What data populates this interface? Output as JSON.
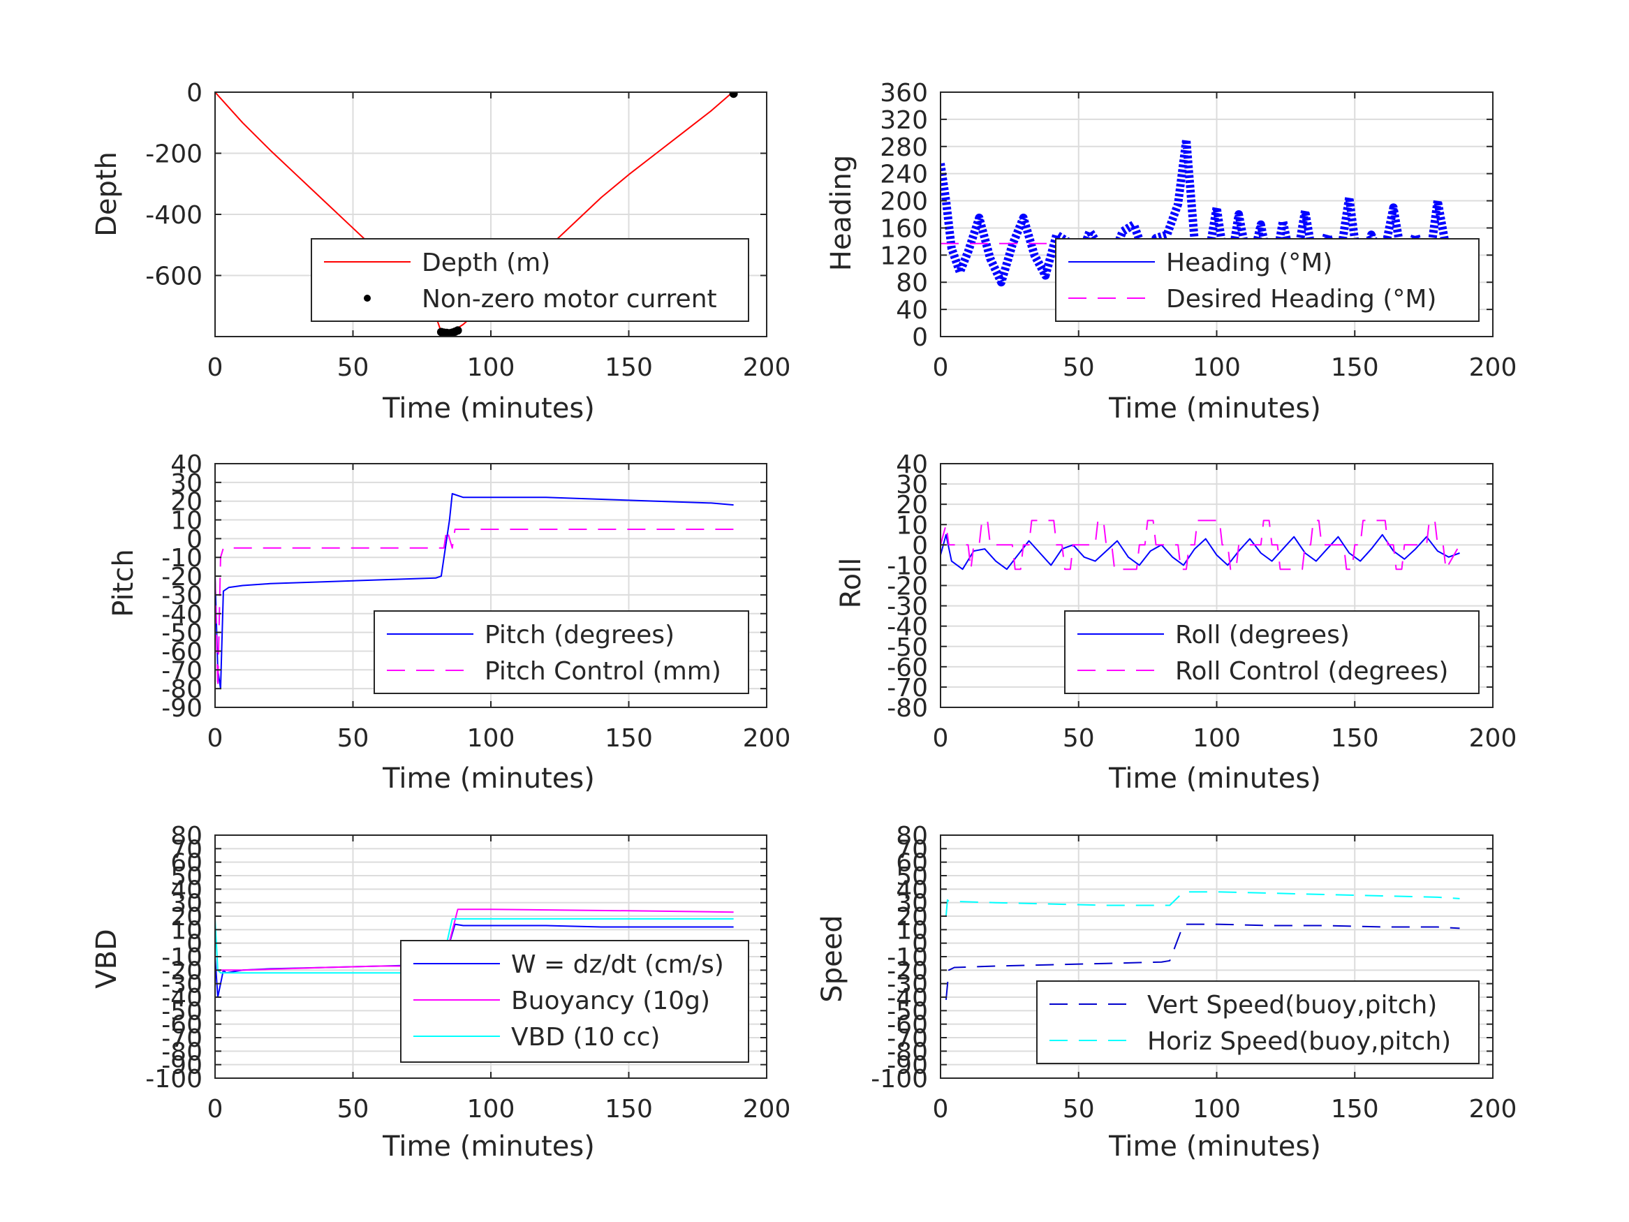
{
  "colors": {
    "axis": "#262626",
    "grid": "#dcdcdc",
    "red": "#ff0000",
    "blue": "#0000ff",
    "magenta": "#ff00ff",
    "cyan": "#00ffff",
    "black": "#000000",
    "navy": "#0000cc"
  },
  "chart_data": [
    {
      "id": "depth",
      "type": "line",
      "xlabel": "Time (minutes)",
      "ylabel": "Depth",
      "xlim": [
        0,
        200
      ],
      "ylim": [
        -800,
        0
      ],
      "xticks": [
        0,
        50,
        100,
        150,
        200
      ],
      "yticks": [
        0,
        -200,
        -400,
        -600
      ],
      "ytick_labels": [
        "0",
        "-200",
        "-400",
        "-600"
      ],
      "legend_position": "bottom-right",
      "series": [
        {
          "name": "Depth (m)",
          "color": "red",
          "style": "solid",
          "x": [
            0,
            10,
            20,
            30,
            40,
            50,
            60,
            70,
            78,
            82,
            85,
            90,
            100,
            110,
            120,
            130,
            140,
            150,
            160,
            170,
            180,
            187
          ],
          "y": [
            0,
            -100,
            -190,
            -275,
            -360,
            -445,
            -530,
            -615,
            -680,
            -785,
            -790,
            -760,
            -680,
            -600,
            -515,
            -430,
            -345,
            -270,
            -200,
            -130,
            -60,
            -5
          ]
        },
        {
          "name": "Non-zero motor current",
          "color": "black",
          "style": "dots",
          "x": [
            82,
            83,
            84,
            85,
            86,
            87,
            88,
            188
          ],
          "y": [
            -785,
            -787,
            -788,
            -789,
            -787,
            -784,
            -780,
            -5
          ]
        }
      ]
    },
    {
      "id": "heading",
      "type": "line",
      "xlabel": "Time (minutes)",
      "ylabel": "Heading",
      "xlim": [
        0,
        200
      ],
      "ylim": [
        0,
        360
      ],
      "xticks": [
        0,
        50,
        100,
        150,
        200
      ],
      "yticks": [
        0,
        40,
        80,
        120,
        160,
        200,
        240,
        280,
        320,
        360
      ],
      "legend_position": "bottom-right",
      "series": [
        {
          "name": "Heading (°M)",
          "color": "blue",
          "style": "thick",
          "x": [
            0,
            2,
            4,
            7,
            10,
            14,
            18,
            22,
            26,
            30,
            34,
            38,
            42,
            46,
            50,
            54,
            58,
            62,
            66,
            70,
            74,
            78,
            82,
            86,
            89,
            92,
            96,
            100,
            104,
            108,
            112,
            116,
            120,
            124,
            128,
            132,
            136,
            140,
            144,
            148,
            152,
            156,
            160,
            164,
            168,
            172,
            176,
            180,
            184,
            188
          ],
          "y": [
            255,
            200,
            130,
            95,
            125,
            175,
            115,
            80,
            135,
            175,
            120,
            90,
            150,
            140,
            110,
            155,
            130,
            115,
            155,
            165,
            120,
            145,
            150,
            195,
            290,
            140,
            95,
            190,
            80,
            180,
            95,
            165,
            80,
            170,
            90,
            185,
            90,
            150,
            100,
            205,
            80,
            150,
            110,
            190,
            95,
            150,
            80,
            200,
            110,
            130
          ]
        },
        {
          "name": "Desired Heading (°M)",
          "color": "magenta",
          "style": "dashed",
          "x": [
            0,
            188
          ],
          "y": [
            137,
            137
          ]
        }
      ]
    },
    {
      "id": "pitch",
      "type": "line",
      "xlabel": "Time (minutes)",
      "ylabel": "Pitch",
      "xlim": [
        0,
        200
      ],
      "ylim": [
        -90,
        40
      ],
      "xticks": [
        0,
        50,
        100,
        150,
        200
      ],
      "yticks": [
        40,
        30,
        20,
        10,
        0,
        -10,
        -20,
        -30,
        -40,
        -50,
        -60,
        -70,
        -80,
        -90
      ],
      "legend_position": "bottom-right",
      "series": [
        {
          "name": "Pitch (degrees)",
          "color": "blue",
          "style": "solid",
          "x": [
            0,
            1,
            2,
            3,
            5,
            10,
            20,
            40,
            60,
            80,
            82,
            84,
            85,
            86,
            90,
            100,
            120,
            140,
            160,
            180,
            188
          ],
          "y": [
            -20,
            -70,
            -80,
            -28,
            -26,
            -25,
            -24,
            -23,
            -22,
            -21,
            -20,
            0,
            10,
            24,
            22,
            22,
            22,
            21,
            20,
            19,
            18
          ]
        },
        {
          "name": "Pitch Control (mm)",
          "color": "magenta",
          "style": "dashed",
          "x": [
            0,
            1,
            2,
            3,
            83,
            84,
            85,
            86,
            87,
            188
          ],
          "y": [
            -20,
            -80,
            -10,
            -5,
            -5,
            5,
            0,
            -5,
            5,
            5
          ]
        }
      ]
    },
    {
      "id": "roll",
      "type": "line",
      "xlabel": "Time (minutes)",
      "ylabel": "Roll",
      "xlim": [
        0,
        200
      ],
      "ylim": [
        -80,
        40
      ],
      "xticks": [
        0,
        50,
        100,
        150,
        200
      ],
      "yticks": [
        40,
        30,
        20,
        10,
        0,
        -10,
        -20,
        -30,
        -40,
        -50,
        -60,
        -70,
        -80
      ],
      "legend_position": "bottom-right",
      "series": [
        {
          "name": "Roll (degrees)",
          "color": "blue",
          "style": "solid",
          "x": [
            0,
            2,
            4,
            8,
            12,
            16,
            20,
            24,
            28,
            32,
            36,
            40,
            44,
            48,
            52,
            56,
            60,
            64,
            68,
            72,
            76,
            80,
            84,
            88,
            92,
            96,
            100,
            104,
            108,
            112,
            116,
            120,
            124,
            128,
            132,
            136,
            140,
            144,
            148,
            152,
            156,
            160,
            164,
            168,
            172,
            176,
            180,
            184,
            188
          ],
          "y": [
            -5,
            5,
            -8,
            -12,
            -3,
            -2,
            -8,
            -12,
            -5,
            2,
            -4,
            -10,
            -2,
            0,
            -6,
            -8,
            -3,
            2,
            -6,
            -10,
            -3,
            0,
            -6,
            -10,
            -2,
            3,
            -5,
            -10,
            -3,
            3,
            -4,
            -8,
            -2,
            4,
            -4,
            -8,
            -2,
            4,
            -4,
            -8,
            -2,
            5,
            -3,
            -7,
            -2,
            4,
            -3,
            -6,
            -4
          ]
        },
        {
          "name": "Roll Control (degrees)",
          "color": "magenta",
          "style": "dashed",
          "x": [
            0,
            2,
            3,
            10,
            11,
            12,
            14,
            15,
            17,
            18,
            26,
            27,
            29,
            30,
            32,
            33,
            41,
            42,
            44,
            45,
            47,
            48,
            56,
            57,
            59,
            60,
            62,
            63,
            71,
            72,
            74,
            75,
            77,
            78,
            86,
            87,
            89,
            90,
            92,
            93,
            101,
            102,
            104,
            105,
            107,
            108,
            116,
            117,
            119,
            120,
            122,
            123,
            131,
            132,
            134,
            135,
            137,
            138,
            146,
            147,
            149,
            150,
            152,
            153,
            161,
            162,
            164,
            165,
            167,
            168,
            176,
            177,
            179,
            180,
            182,
            183,
            188
          ],
          "y": [
            0,
            10,
            0,
            0,
            -12,
            0,
            0,
            12,
            12,
            0,
            0,
            -12,
            -12,
            0,
            0,
            12,
            12,
            0,
            0,
            -12,
            -12,
            0,
            0,
            12,
            12,
            0,
            0,
            -12,
            -12,
            0,
            0,
            12,
            12,
            0,
            0,
            -12,
            -12,
            0,
            0,
            12,
            12,
            0,
            0,
            -12,
            -12,
            0,
            0,
            12,
            12,
            0,
            0,
            -12,
            -12,
            0,
            0,
            12,
            12,
            0,
            0,
            -12,
            -12,
            0,
            0,
            12,
            12,
            0,
            0,
            -12,
            -12,
            0,
            0,
            12,
            12,
            0,
            0,
            -12,
            0
          ]
        }
      ]
    },
    {
      "id": "vbd",
      "type": "line",
      "xlabel": "Time (minutes)",
      "ylabel": "VBD",
      "xlim": [
        0,
        200
      ],
      "ylim": [
        -100,
        80
      ],
      "xticks": [
        0,
        50,
        100,
        150,
        200
      ],
      "yticks": [
        80,
        70,
        60,
        50,
        40,
        30,
        20,
        10,
        0,
        -10,
        -20,
        -30,
        -40,
        -50,
        -60,
        -70,
        -80,
        -90,
        -100
      ],
      "ytick_labels": [
        "80",
        "70",
        "60",
        "50",
        "40",
        "30",
        "20",
        "10",
        "0",
        "-10",
        "-20",
        "-30",
        "-40",
        "-50",
        "-60",
        "-70",
        "-80",
        "-90",
        "-100"
      ],
      "legend_position": "bottom-right",
      "series": [
        {
          "name": "W = dz/dt (cm/s)",
          "color": "blue",
          "style": "solid",
          "x": [
            0,
            1,
            2,
            3,
            4,
            10,
            20,
            40,
            60,
            80,
            83,
            87,
            90,
            100,
            120,
            140,
            160,
            180,
            188
          ],
          "y": [
            -10,
            -40,
            -30,
            -20,
            -22,
            -20,
            -19,
            -18,
            -17,
            -16,
            -14,
            14,
            13,
            13,
            13,
            12,
            12,
            12,
            12
          ]
        },
        {
          "name": "Buoyancy (10g)",
          "color": "magenta",
          "style": "solid",
          "x": [
            0,
            3,
            10,
            40,
            60,
            80,
            83,
            88,
            100,
            150,
            188
          ],
          "y": [
            -20,
            -20,
            -20,
            -18,
            -17,
            -17,
            -15,
            25,
            25,
            24,
            23
          ]
        },
        {
          "name": "VBD (10 cc)",
          "color": "cyan",
          "style": "solid",
          "x": [
            0,
            1,
            2,
            3,
            82,
            84,
            86,
            88,
            90,
            188
          ],
          "y": [
            18,
            -20,
            -22,
            -22,
            -22,
            0,
            18,
            18,
            18,
            18
          ]
        }
      ]
    },
    {
      "id": "speed",
      "type": "line",
      "xlabel": "Time (minutes)",
      "ylabel": "Speed",
      "xlim": [
        0,
        200
      ],
      "ylim": [
        -100,
        80
      ],
      "xticks": [
        0,
        50,
        100,
        150,
        200
      ],
      "yticks": [
        80,
        70,
        60,
        50,
        40,
        30,
        20,
        10,
        0,
        -10,
        -20,
        -30,
        -40,
        -50,
        -60,
        -70,
        -80,
        -90,
        -100
      ],
      "ytick_labels": [
        "80",
        "70",
        "60",
        "50",
        "40",
        "30",
        "20",
        "10",
        "0",
        "-10",
        "-20",
        "-30",
        "-40",
        "-50",
        "-60",
        "-70",
        "-80",
        "-90",
        "-100"
      ],
      "legend_position": "bottom-right",
      "series": [
        {
          "name": "Vert Speed(buoy,pitch)",
          "color": "navy",
          "style": "dashed",
          "x": [
            2,
            3,
            5,
            20,
            40,
            60,
            80,
            83,
            88,
            90,
            100,
            120,
            140,
            160,
            180,
            188
          ],
          "y": [
            -42,
            -20,
            -18,
            -17,
            -16,
            -15,
            -14,
            -13,
            14,
            14,
            14,
            13,
            13,
            12,
            12,
            11
          ]
        },
        {
          "name": "Horiz Speed(buoy,pitch)",
          "color": "cyan",
          "style": "dashed",
          "x": [
            2,
            2.5,
            3,
            20,
            40,
            60,
            80,
            83,
            88,
            90,
            100,
            120,
            140,
            160,
            180,
            188
          ],
          "y": [
            20,
            32,
            31,
            30,
            29,
            28,
            28,
            28,
            38,
            38,
            38,
            37,
            36,
            35,
            34,
            33
          ]
        }
      ]
    }
  ]
}
